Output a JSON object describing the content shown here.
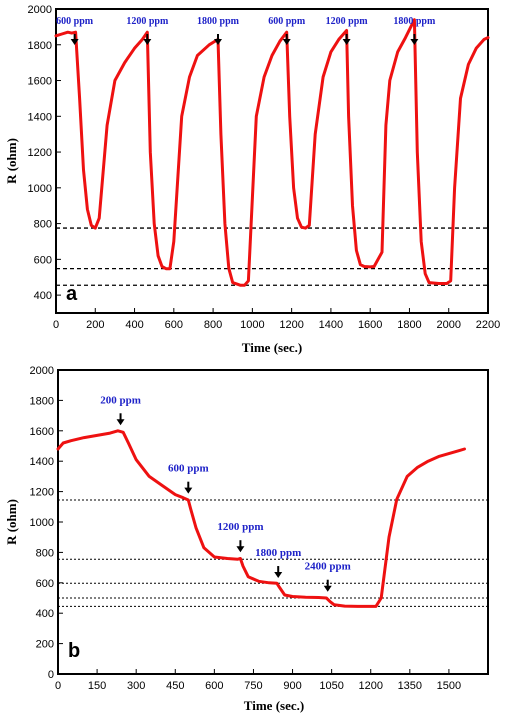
{
  "chart_data": [
    {
      "panel": "a",
      "type": "line",
      "xlabel": "Time (sec.)",
      "ylabel": "R (ohm)",
      "xlim": [
        0,
        2200
      ],
      "ylim": [
        300,
        2000
      ],
      "x_ticks": [
        0,
        200,
        400,
        600,
        800,
        1000,
        1200,
        1400,
        1600,
        1800,
        2000,
        2200
      ],
      "y_ticks": [
        400,
        600,
        800,
        1000,
        1200,
        1400,
        1600,
        1800,
        2000
      ],
      "series_color": "#ee1111",
      "annotation_color": "#1e22c8",
      "annotations": [
        {
          "text": "600 ppm",
          "x": 95
        },
        {
          "text": "1200 ppm",
          "x": 465
        },
        {
          "text": "1800 ppm",
          "x": 825
        },
        {
          "text": "600 ppm",
          "x": 1175
        },
        {
          "text": "1200 ppm",
          "x": 1480
        },
        {
          "text": "1800 ppm",
          "x": 1825
        }
      ],
      "reference_lines": [
        775,
        548,
        455
      ],
      "x": [
        0,
        30,
        60,
        80,
        100,
        120,
        140,
        160,
        180,
        200,
        220,
        260,
        300,
        350,
        400,
        440,
        465,
        480,
        500,
        520,
        540,
        560,
        580,
        600,
        640,
        680,
        720,
        780,
        825,
        840,
        860,
        880,
        900,
        940,
        960,
        980,
        1020,
        1060,
        1100,
        1140,
        1175,
        1190,
        1210,
        1230,
        1250,
        1270,
        1290,
        1320,
        1360,
        1400,
        1440,
        1480,
        1490,
        1510,
        1530,
        1550,
        1570,
        1600,
        1620,
        1660,
        1680,
        1700,
        1740,
        1780,
        1825,
        1840,
        1860,
        1880,
        1900,
        1950,
        1990,
        2010,
        2030,
        2060,
        2100,
        2140,
        2180,
        2200
      ],
      "y": [
        1850,
        1860,
        1870,
        1865,
        1870,
        1500,
        1100,
        880,
        790,
        775,
        830,
        1350,
        1600,
        1700,
        1780,
        1830,
        1870,
        1200,
        800,
        620,
        560,
        548,
        548,
        700,
        1400,
        1620,
        1740,
        1800,
        1830,
        1300,
        800,
        550,
        470,
        455,
        455,
        480,
        1400,
        1620,
        1740,
        1820,
        1870,
        1400,
        1000,
        830,
        780,
        775,
        790,
        1300,
        1620,
        1760,
        1830,
        1880,
        1400,
        900,
        650,
        570,
        560,
        558,
        560,
        640,
        1350,
        1600,
        1760,
        1840,
        1940,
        1200,
        700,
        520,
        470,
        465,
        465,
        480,
        1000,
        1500,
        1690,
        1780,
        1830,
        1840
      ]
    },
    {
      "panel": "b",
      "type": "line",
      "xlabel": "Time (sec.)",
      "ylabel": "R (ohm)",
      "xlim": [
        0,
        1650
      ],
      "ylim": [
        0,
        2000
      ],
      "x_ticks": [
        0,
        150,
        300,
        450,
        600,
        750,
        900,
        1050,
        1200,
        1350,
        1500
      ],
      "y_ticks": [
        0,
        200,
        400,
        600,
        800,
        1000,
        1200,
        1400,
        1600,
        1800,
        2000
      ],
      "series_color": "#ee1111",
      "annotation_color": "#1e22c8",
      "annotations": [
        {
          "text": "200 ppm",
          "x": 240,
          "y": 1610
        },
        {
          "text": "600 ppm",
          "x": 500,
          "y": 1160
        },
        {
          "text": "1200 ppm",
          "x": 700,
          "y": 775
        },
        {
          "text": "1800 ppm",
          "x": 845,
          "y": 605
        },
        {
          "text": "2400 ppm",
          "x": 1035,
          "y": 515
        }
      ],
      "reference_lines": [
        1145,
        755,
        597,
        500,
        445
      ],
      "x": [
        0,
        20,
        50,
        100,
        150,
        200,
        230,
        250,
        270,
        300,
        350,
        400,
        450,
        480,
        500,
        510,
        530,
        560,
        600,
        650,
        690,
        700,
        710,
        730,
        770,
        810,
        840,
        850,
        870,
        900,
        950,
        1000,
        1030,
        1045,
        1060,
        1100,
        1150,
        1200,
        1220,
        1240,
        1270,
        1300,
        1340,
        1380,
        1420,
        1460,
        1500,
        1540,
        1560
      ],
      "y": [
        1480,
        1520,
        1535,
        1555,
        1570,
        1585,
        1600,
        1590,
        1520,
        1410,
        1300,
        1240,
        1180,
        1160,
        1145,
        1080,
        960,
        830,
        770,
        760,
        755,
        760,
        710,
        640,
        610,
        600,
        597,
        570,
        520,
        510,
        505,
        503,
        500,
        475,
        455,
        447,
        445,
        445,
        445,
        500,
        900,
        1150,
        1300,
        1360,
        1400,
        1430,
        1450,
        1470,
        1480
      ]
    }
  ]
}
